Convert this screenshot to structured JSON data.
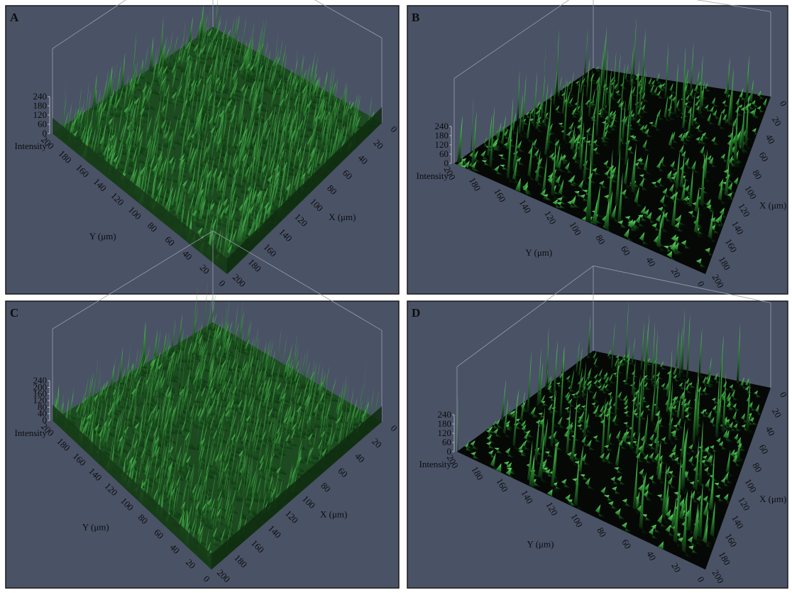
{
  "panels": [
    {
      "label": "A",
      "intensity_title": "Intensity",
      "y_title": "Y (μm)",
      "x_title": "X (μm)",
      "intensity_ticks": [
        0,
        60,
        120,
        180,
        240
      ],
      "y_ticks": [
        0,
        20,
        40,
        60,
        80,
        100,
        120,
        140,
        160,
        180,
        200
      ],
      "x_ticks": [
        0,
        20,
        40,
        60,
        80,
        100,
        120,
        140,
        160,
        180,
        200
      ]
    },
    {
      "label": "B",
      "intensity_title": "Intensity",
      "y_title": "Y (μm)",
      "x_title": "X (μm)",
      "intensity_ticks": [
        0,
        60,
        120,
        180,
        240
      ],
      "y_ticks": [
        0,
        20,
        40,
        60,
        80,
        100,
        120,
        140,
        160,
        180,
        200
      ],
      "x_ticks": [
        0,
        20,
        40,
        60,
        80,
        100,
        120,
        140,
        160,
        180,
        200
      ]
    },
    {
      "label": "C",
      "intensity_title": "Intensity",
      "y_title": "Y (μm)",
      "x_title": "X (μm)",
      "intensity_ticks": [
        0,
        40,
        80,
        120,
        160,
        200,
        240
      ],
      "y_ticks": [
        0,
        20,
        40,
        60,
        80,
        100,
        120,
        140,
        160,
        180,
        200
      ],
      "x_ticks": [
        0,
        20,
        40,
        60,
        80,
        100,
        120,
        140,
        160,
        180,
        200
      ]
    },
    {
      "label": "D",
      "intensity_title": "Intensity",
      "y_title": "Y (μm)",
      "x_title": "X (μm)",
      "intensity_ticks": [
        0,
        60,
        120,
        180,
        240
      ],
      "y_ticks": [
        0,
        20,
        40,
        60,
        80,
        100,
        120,
        140,
        160,
        180,
        200
      ],
      "x_ticks": [
        0,
        20,
        40,
        60,
        80,
        100,
        120,
        140,
        160,
        180,
        200
      ]
    }
  ]
}
